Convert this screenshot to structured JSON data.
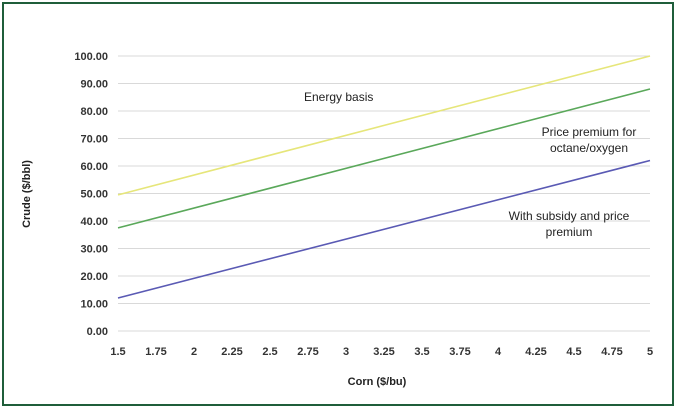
{
  "chart_data": {
    "type": "line",
    "xlabel": "Corn ($/bu)",
    "ylabel": "Crude ($/bbl)",
    "x_ticks": [
      "1.5",
      "1.75",
      "2",
      "2.25",
      "2.5",
      "2.75",
      "3",
      "3.25",
      "3.5",
      "3.75",
      "4",
      "4.25",
      "4.5",
      "4.75",
      "5"
    ],
    "y_ticks": [
      "0.00",
      "10.00",
      "20.00",
      "30.00",
      "40.00",
      "50.00",
      "60.00",
      "70.00",
      "80.00",
      "90.00",
      "100.00"
    ],
    "xlim": [
      1.5,
      5
    ],
    "ylim": [
      0,
      100
    ],
    "grid": "horizontal",
    "series": [
      {
        "color": "#e6e67a",
        "x": [
          1.5,
          5
        ],
        "y": [
          49.5,
          100
        ]
      },
      {
        "color": "#5aa85a",
        "x": [
          1.5,
          5
        ],
        "y": [
          37.5,
          88
        ]
      },
      {
        "color": "#5a5ab4",
        "x": [
          1.5,
          5
        ],
        "y": [
          12,
          62
        ]
      }
    ],
    "annotations": [
      {
        "lines": [
          "Energy basis"
        ]
      },
      {
        "lines": [
          "Price premium for",
          "octane/oxygen"
        ]
      },
      {
        "lines": [
          "With subsidy and price",
          "premium"
        ]
      }
    ]
  }
}
